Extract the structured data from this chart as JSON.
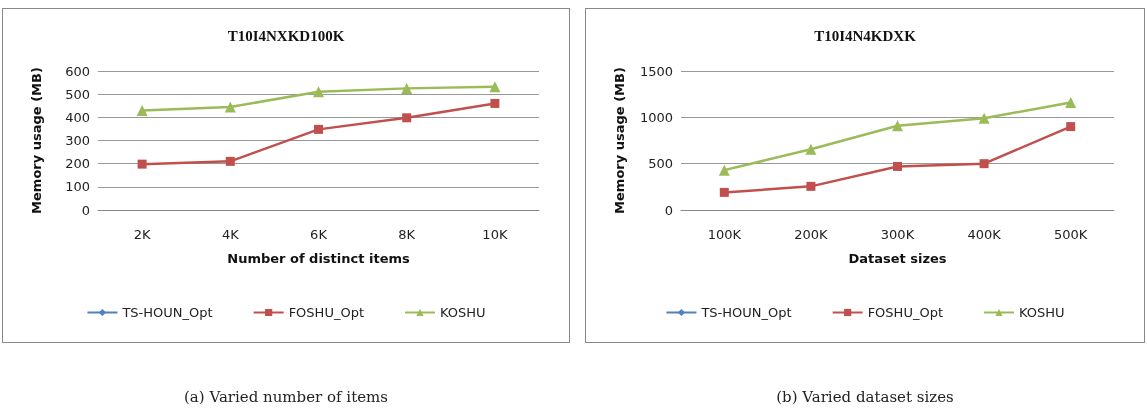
{
  "chart_data": [
    {
      "type": "line",
      "title": "T10I4NXKD100K",
      "xlabel": "Number of distinct items",
      "ylabel": "Memory usage (MB)",
      "categories": [
        "2K",
        "4K",
        "6K",
        "8K",
        "10K"
      ],
      "series": [
        {
          "name": "TS-HOUN_Opt",
          "color": "#4f81bd",
          "marker": "diamond",
          "values": [
            null,
            null,
            null,
            null,
            null
          ]
        },
        {
          "name": "FOSHU_Opt",
          "color": "#c0504d",
          "marker": "square",
          "values": [
            198,
            210,
            348,
            398,
            460
          ]
        },
        {
          "name": "KOSHU",
          "color": "#9bbb59",
          "marker": "triangle",
          "values": [
            430,
            445,
            510,
            525,
            532
          ]
        }
      ],
      "ylim": [
        0,
        600
      ],
      "yticks": [
        0,
        100,
        200,
        300,
        400,
        500,
        600
      ],
      "grid": "y",
      "legend": "bottom",
      "annotations": [
        "(a) Varied number of items"
      ]
    },
    {
      "type": "line",
      "title": "T10I4N4KDXK",
      "xlabel": "Dataset sizes",
      "ylabel": "Memory usage (MB)",
      "categories": [
        "100K",
        "200K",
        "300K",
        "400K",
        "500K"
      ],
      "series": [
        {
          "name": "TS-HOUN_Opt",
          "color": "#4f81bd",
          "marker": "diamond",
          "values": [
            null,
            null,
            null,
            null,
            null
          ]
        },
        {
          "name": "FOSHU_Opt",
          "color": "#c0504d",
          "marker": "square",
          "values": [
            190,
            255,
            470,
            500,
            900
          ]
        },
        {
          "name": "KOSHU",
          "color": "#9bbb59",
          "marker": "triangle",
          "values": [
            430,
            655,
            910,
            990,
            1160
          ]
        }
      ],
      "ylim": [
        0,
        1500
      ],
      "yticks": [
        0,
        500,
        1000,
        1500
      ],
      "grid": "y",
      "legend": "bottom",
      "annotations": [
        "(b) Varied dataset sizes"
      ]
    }
  ]
}
